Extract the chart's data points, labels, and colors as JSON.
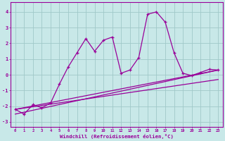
{
  "x": [
    0,
    1,
    2,
    3,
    4,
    5,
    6,
    7,
    8,
    9,
    10,
    11,
    12,
    13,
    14,
    15,
    16,
    17,
    18,
    19,
    20,
    21,
    22,
    23
  ],
  "line1": [
    -2.2,
    -2.5,
    -1.9,
    -2.1,
    -1.8,
    -0.6,
    0.5,
    1.4,
    2.3,
    1.5,
    2.2,
    2.4,
    0.1,
    0.3,
    1.1,
    3.85,
    4.0,
    3.35,
    1.4,
    0.1,
    -0.05,
    0.15,
    0.35,
    0.3
  ],
  "line2_x": [
    0,
    23
  ],
  "line2_y": [
    -2.2,
    0.3
  ],
  "line3_x": [
    0,
    23
  ],
  "line3_y": [
    -2.5,
    0.3
  ],
  "line4_x": [
    0,
    23
  ],
  "line4_y": [
    -2.2,
    -0.3
  ],
  "color": "#990099",
  "bg_color": "#c8e8e8",
  "grid_color": "#a0c8c8",
  "xlabel": "Windchill (Refroidissement éolien,°C)",
  "yticks": [
    -3,
    -2,
    -1,
    0,
    1,
    2,
    3,
    4
  ],
  "xticks": [
    0,
    1,
    2,
    3,
    4,
    5,
    6,
    7,
    8,
    9,
    10,
    11,
    12,
    13,
    14,
    15,
    16,
    17,
    18,
    19,
    20,
    21,
    22,
    23
  ],
  "ylim": [
    -3.3,
    4.6
  ],
  "xlim": [
    -0.5,
    23.5
  ]
}
